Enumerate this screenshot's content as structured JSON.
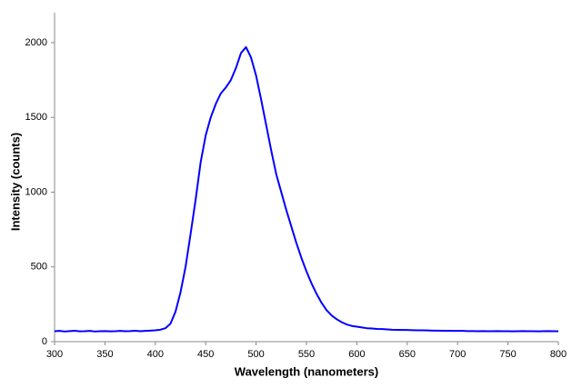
{
  "chart_data": {
    "type": "line",
    "xlabel": "Wavelength (nanometers)",
    "ylabel": "Intensity (counts)",
    "x": [
      300,
      305,
      310,
      315,
      320,
      325,
      330,
      335,
      340,
      345,
      350,
      355,
      360,
      365,
      370,
      375,
      380,
      385,
      390,
      395,
      400,
      405,
      410,
      415,
      420,
      425,
      430,
      435,
      440,
      445,
      450,
      455,
      460,
      465,
      470,
      475,
      480,
      485,
      490,
      495,
      500,
      505,
      510,
      515,
      520,
      525,
      530,
      535,
      540,
      545,
      550,
      555,
      560,
      565,
      570,
      575,
      580,
      585,
      590,
      595,
      600,
      605,
      610,
      615,
      620,
      625,
      630,
      635,
      640,
      645,
      650,
      655,
      660,
      665,
      670,
      675,
      680,
      685,
      690,
      695,
      700,
      705,
      710,
      715,
      720,
      725,
      730,
      735,
      740,
      745,
      750,
      755,
      760,
      765,
      770,
      775,
      780,
      785,
      790,
      795,
      800
    ],
    "series": [
      {
        "name": "Intensity",
        "color": "#0000ff",
        "values": [
          70,
          72,
          68,
          71,
          73,
          69,
          70,
          72,
          68,
          70,
          71,
          69,
          70,
          72,
          70,
          71,
          73,
          70,
          72,
          74,
          76,
          80,
          90,
          120,
          200,
          330,
          500,
          720,
          950,
          1200,
          1380,
          1500,
          1590,
          1660,
          1700,
          1750,
          1830,
          1930,
          1970,
          1900,
          1780,
          1620,
          1450,
          1280,
          1120,
          1000,
          880,
          770,
          660,
          560,
          470,
          390,
          320,
          260,
          210,
          175,
          150,
          130,
          115,
          105,
          100,
          95,
          90,
          88,
          85,
          84,
          82,
          80,
          79,
          78,
          78,
          77,
          76,
          76,
          75,
          74,
          74,
          73,
          73,
          72,
          72,
          72,
          71,
          71,
          70,
          71,
          70,
          70,
          71,
          70,
          70,
          69,
          70,
          71,
          70,
          70,
          69,
          70,
          71,
          70,
          70
        ]
      }
    ],
    "xlim": [
      300,
      800
    ],
    "xticks": [
      300,
      350,
      400,
      450,
      500,
      550,
      600,
      650,
      700,
      750,
      800
    ],
    "ylim": [
      0,
      2200
    ],
    "yticks": [
      0,
      500,
      1000,
      1500,
      2000
    ],
    "grid": false
  }
}
